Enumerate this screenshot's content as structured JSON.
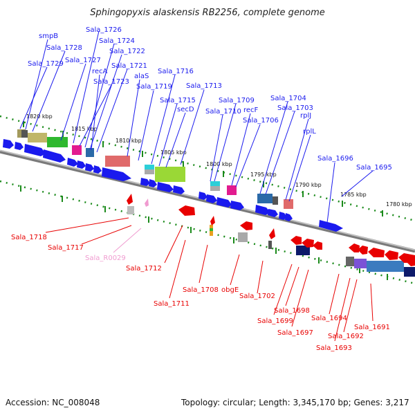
{
  "title": "Sphingopyxis alaskensis RB2256, complete genome",
  "accession_label": "Accession: NC_008048",
  "topology_label": "Topology: circular; Length: 3,345,170 bp; Genes: 3,217",
  "colors": {
    "forward_gene": "#1a1aee",
    "reverse_gene": "#e80000",
    "rna_gene": "#f09bd0",
    "backbone": "#808080",
    "tick": "#1a8a1a"
  },
  "scale_labels": [
    "1820 kbp",
    "1815 kbp",
    "1810 kbp",
    "1805 kbp",
    "1800 kbp",
    "1795 kbp",
    "1790 kbp",
    "1785 kbp",
    "1780 kbp"
  ],
  "forward_labels": [
    "smpB",
    "Sala_1726",
    "Sala_1728",
    "Sala_1724",
    "Sala_1722",
    "Sala_1729",
    "Sala_1727",
    "recA",
    "Sala_1721",
    "alaS",
    "Sala_1723",
    "Sala_1716",
    "Sala_1719",
    "Sala_1713",
    "Sala_1715",
    "Sala_1709",
    "secD",
    "Sala_1710",
    "recF",
    "Sala_1704",
    "Sala_1703",
    "Sala_1706",
    "rplJ",
    "rplL",
    "Sala_1696",
    "Sala_1695"
  ],
  "reverse_labels": [
    "Sala_1718",
    "Sala_1717",
    "Sala_R0029",
    "Sala_1712",
    "Sala_1708",
    "Sala_1711",
    "obgE",
    "Sala_1702",
    "Sala_1698",
    "Sala_1699",
    "Sala_1697",
    "Sala_1694",
    "Sala_1692",
    "Sala_1693",
    "Sala_1691"
  ]
}
